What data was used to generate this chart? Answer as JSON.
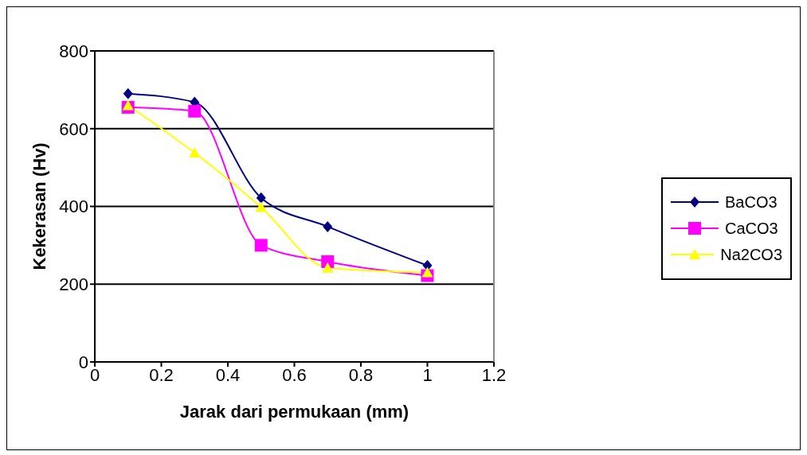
{
  "chart_data": {
    "type": "line",
    "xlabel": "Jarak dari permukaan (mm)",
    "ylabel": "Kekerasan (Hv)",
    "x": [
      0.1,
      0.3,
      0.5,
      0.7,
      1
    ],
    "series": [
      {
        "name": "BaCO3",
        "color": "#000080",
        "marker": "diamond",
        "values": [
          690,
          668,
          422,
          348,
          248
        ]
      },
      {
        "name": "CaCO3",
        "color": "#ff00ff",
        "marker": "square",
        "values": [
          655,
          645,
          300,
          258,
          222
        ]
      },
      {
        "name": "Na2CO3",
        "color": "#ffff00",
        "marker": "triangle",
        "values": [
          660,
          538,
          398,
          242,
          230
        ]
      }
    ],
    "xlim": [
      0,
      1.2
    ],
    "xticks": [
      0,
      0.2,
      0.4,
      0.6,
      0.8,
      1,
      1.2
    ],
    "ylim": [
      0,
      800
    ],
    "yticks": [
      0,
      200,
      400,
      600,
      800
    ],
    "grid": "y",
    "legend": "right"
  }
}
